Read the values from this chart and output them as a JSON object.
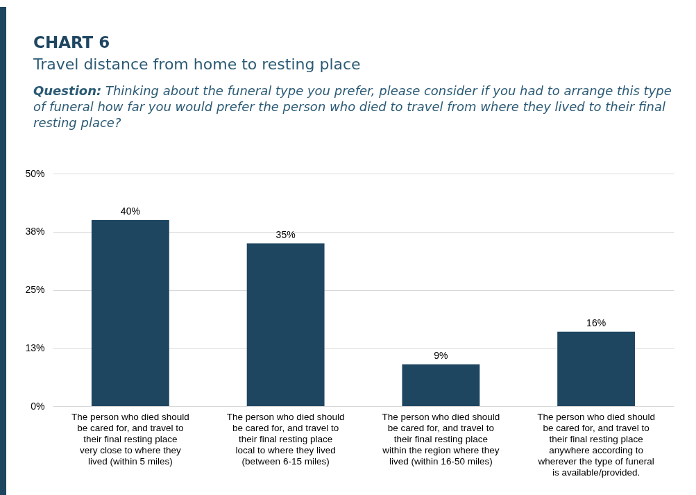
{
  "chart_data": {
    "type": "bar",
    "title": "CHART 6",
    "subtitle": "Travel distance from home to resting place",
    "annotations": [
      "Question: Thinking about the funeral type you prefer, please consider if you had to arrange this type of funeral how far you would prefer the person who died to travel from where they lived to their final resting place?"
    ],
    "categories": [
      "The person who died should be cared for, and travel to their final resting place very close to where they lived (within 5 miles)",
      "The person who died should be cared for, and travel to their final resting place local to where they lived (between 6-15 miles)",
      "The person who died should be cared for, and travel to their final resting place within the region where they lived (within 16-50 miles)",
      "The person who died should be cared for, and travel to their final resting place anywhere according to wherever the type of funeral is available/provided."
    ],
    "values": [
      40,
      35,
      9,
      16
    ],
    "value_labels": [
      "40%",
      "35%",
      "9%",
      "16%"
    ],
    "color": "#1f4661",
    "ylim": [
      0,
      50
    ],
    "yticks": [
      {
        "value": 0,
        "label": "0%"
      },
      {
        "value": 12.5,
        "label": "13%"
      },
      {
        "value": 25,
        "label": "25%"
      },
      {
        "value": 37.5,
        "label": "38%"
      },
      {
        "value": 50,
        "label": "50%"
      }
    ],
    "grid": "y"
  }
}
